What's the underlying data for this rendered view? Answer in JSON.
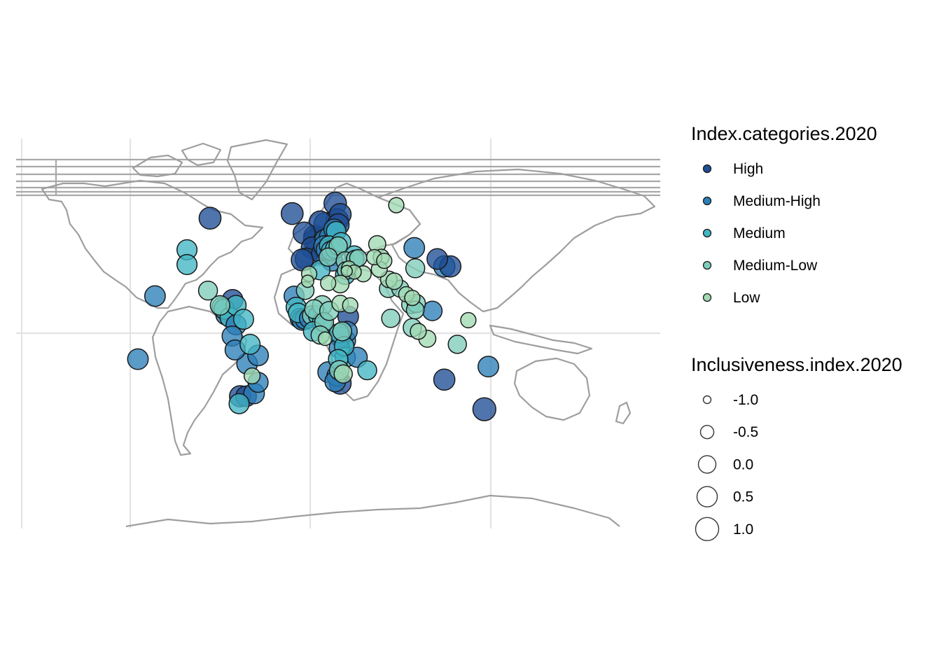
{
  "chart_data": {
    "type": "bubble-map",
    "title": "",
    "legends": {
      "color": {
        "title": "Index.categories.2020",
        "items": [
          {
            "label": "High",
            "color": "#1f4e96"
          },
          {
            "label": "Medium-High",
            "color": "#2c7fb8"
          },
          {
            "label": "Medium",
            "color": "#41b6c4"
          },
          {
            "label": "Medium-Low",
            "color": "#7fcdbb"
          },
          {
            "label": "Low",
            "color": "#a1dab4"
          }
        ]
      },
      "size": {
        "title": "Inclusiveness.index.2020",
        "items": [
          {
            "label": "-1.0",
            "value": -1.0
          },
          {
            "label": "-0.5",
            "value": -0.5
          },
          {
            "label": "0.0",
            "value": 0.0
          },
          {
            "label": "0.5",
            "value": 0.5
          },
          {
            "label": "1.0",
            "value": 1.0
          }
        ]
      }
    },
    "points": [
      {
        "lon": 25.0,
        "lat": 70.0,
        "cat": "High",
        "index": 0.9
      },
      {
        "lon": -100.0,
        "lat": 62.0,
        "cat": "High",
        "index": 0.8
      },
      {
        "lon": 86.0,
        "lat": 69.0,
        "cat": "Low",
        "index": -0.3
      },
      {
        "lon": 30.0,
        "lat": 64.0,
        "cat": "High",
        "index": 0.8
      },
      {
        "lon": 27.0,
        "lat": 61.0,
        "cat": "High",
        "index": 0.9
      },
      {
        "lon": 10.0,
        "lat": 60.0,
        "cat": "High",
        "index": 0.8
      },
      {
        "lon": 15.0,
        "lat": 59.0,
        "cat": "High",
        "index": 0.9
      },
      {
        "lon": 28.0,
        "lat": 58.5,
        "cat": "High",
        "index": 0.8
      },
      {
        "lon": -18.0,
        "lat": 64.5,
        "cat": "High",
        "index": 0.8
      },
      {
        "lon": -6.0,
        "lat": 54.0,
        "cat": "High",
        "index": 0.8
      },
      {
        "lon": 5.0,
        "lat": 52.0,
        "cat": "High",
        "index": 1.0
      },
      {
        "lon": 9.0,
        "lat": 51.0,
        "cat": "High",
        "index": 1.0
      },
      {
        "lon": 4.5,
        "lat": 50.0,
        "cat": "High",
        "index": 0.9
      },
      {
        "lon": 15.0,
        "lat": 50.5,
        "cat": "Medium-High",
        "index": 0.6
      },
      {
        "lon": 19.5,
        "lat": 52.0,
        "cat": "Medium-High",
        "index": 0.6
      },
      {
        "lon": 24.0,
        "lat": 56.0,
        "cat": "Medium-High",
        "index": 0.6
      },
      {
        "lon": 26.0,
        "lat": 55.0,
        "cat": "Medium",
        "index": 0.4
      },
      {
        "lon": 2.0,
        "lat": 46.0,
        "cat": "High",
        "index": 0.8
      },
      {
        "lon": 8.0,
        "lat": 46.8,
        "cat": "High",
        "index": 0.9
      },
      {
        "lon": 14.0,
        "lat": 47.0,
        "cat": "Medium-High",
        "index": 0.6
      },
      {
        "lon": 12.0,
        "lat": 43.0,
        "cat": "High",
        "index": 0.7
      },
      {
        "lon": 19.0,
        "lat": 47.2,
        "cat": "Medium",
        "index": 0.4
      },
      {
        "lon": 21.0,
        "lat": 44.5,
        "cat": "Medium",
        "index": 0.4
      },
      {
        "lon": 25.0,
        "lat": 45.5,
        "cat": "Medium",
        "index": 0.4
      },
      {
        "lon": 28.0,
        "lat": 47.0,
        "cat": "Medium-Low",
        "index": 0.2
      },
      {
        "lon": 31.0,
        "lat": 49.0,
        "cat": "Medium",
        "index": 0.4
      },
      {
        "lon": 22.0,
        "lat": 39.0,
        "cat": "Medium-High",
        "index": 0.6
      },
      {
        "lon": 18.0,
        "lat": 41.0,
        "cat": "Medium-Low",
        "index": 0.2
      },
      {
        "lon": 16.0,
        "lat": 45.0,
        "cat": "Medium-High",
        "index": 0.5
      },
      {
        "lon": -4.0,
        "lat": 40.0,
        "cat": "High",
        "index": 0.8
      },
      {
        "lon": -8.0,
        "lat": 39.5,
        "cat": "High",
        "index": 0.8
      },
      {
        "lon": 35.0,
        "lat": 39.0,
        "cat": "Medium-Low",
        "index": 0.2
      },
      {
        "lon": 44.0,
        "lat": 42.0,
        "cat": "Medium",
        "index": 0.3
      },
      {
        "lon": 45.0,
        "lat": 40.0,
        "cat": "Medium-Low",
        "index": 0.1
      },
      {
        "lon": 48.0,
        "lat": 40.5,
        "cat": "Medium-Low",
        "index": 0.0
      },
      {
        "lon": 38.5,
        "lat": 35.0,
        "cat": "Low",
        "index": -0.4
      },
      {
        "lon": 36.0,
        "lat": 33.8,
        "cat": "Medium-Low",
        "index": 0.1
      },
      {
        "lon": 35.0,
        "lat": 31.5,
        "cat": "Medium",
        "index": 0.4
      },
      {
        "lon": 53.0,
        "lat": 32.0,
        "cat": "Low",
        "index": -0.2
      },
      {
        "lon": 44.0,
        "lat": 33.0,
        "cat": "Low",
        "index": -0.5
      },
      {
        "lon": 36.5,
        "lat": 33.5,
        "cat": "Low",
        "index": -1.0
      },
      {
        "lon": 67.0,
        "lat": 48.0,
        "cat": "Low",
        "index": 0.0
      },
      {
        "lon": 104.0,
        "lat": 46.0,
        "cat": "Medium-High",
        "index": 0.6
      },
      {
        "lon": 127.0,
        "lat": 40.0,
        "cat": "High",
        "index": 0.6
      },
      {
        "lon": 64.0,
        "lat": 41.0,
        "cat": "Low",
        "index": -0.3
      },
      {
        "lon": 71.0,
        "lat": 41.0,
        "cat": "Low",
        "index": -0.2
      },
      {
        "lon": 74.0,
        "lat": 39.0,
        "cat": "Low",
        "index": -0.3
      },
      {
        "lon": 69.0,
        "lat": 34.5,
        "cat": "Low",
        "index": -0.2
      },
      {
        "lon": 105.0,
        "lat": 35.0,
        "cat": "Medium-Low",
        "index": 0.3
      },
      {
        "lon": 134.0,
        "lat": 36.0,
        "cat": "Medium-High",
        "index": 0.7
      },
      {
        "lon": 140.0,
        "lat": 36.0,
        "cat": "High",
        "index": 0.7
      },
      {
        "lon": 78.5,
        "lat": 29.0,
        "cat": "Low",
        "index": -0.1
      },
      {
        "lon": 84.0,
        "lat": 28.0,
        "cat": "Low",
        "index": -0.1
      },
      {
        "lon": 78.0,
        "lat": 24.0,
        "cat": "Medium-Low",
        "index": 0.1
      },
      {
        "lon": 90.0,
        "lat": 24.0,
        "cat": "Medium-Low",
        "index": 0.0
      },
      {
        "lon": 96.0,
        "lat": 21.0,
        "cat": "Low",
        "index": -0.3
      },
      {
        "lon": 102.0,
        "lat": 19.0,
        "cat": "Low",
        "index": -0.3
      },
      {
        "lon": 100.5,
        "lat": 15.5,
        "cat": "Medium-Low",
        "index": 0.2
      },
      {
        "lon": 106.0,
        "lat": 16.0,
        "cat": "Medium-Low",
        "index": 0.2
      },
      {
        "lon": 105.0,
        "lat": 12.5,
        "cat": "Medium-Low",
        "index": 0.1
      },
      {
        "lon": 122.0,
        "lat": 12.0,
        "cat": "Medium-High",
        "index": 0.4
      },
      {
        "lon": 80.5,
        "lat": 8.0,
        "cat": "Medium-Low",
        "index": 0.2
      },
      {
        "lon": 102.0,
        "lat": 3.0,
        "cat": "Medium-Low",
        "index": 0.2
      },
      {
        "lon": 108.0,
        "lat": 1.0,
        "cat": "Low",
        "index": -0.2
      },
      {
        "lon": 117.0,
        "lat": -3.0,
        "cat": "Low",
        "index": 0.0
      },
      {
        "lon": 147.0,
        "lat": -6.0,
        "cat": "Medium-Low",
        "index": 0.2
      },
      {
        "lon": 158.0,
        "lat": 7.0,
        "cat": "Low",
        "index": -0.3
      },
      {
        "lon": 134.0,
        "lat": -25.0,
        "cat": "High",
        "index": 0.7
      },
      {
        "lon": 174.0,
        "lat": -41.0,
        "cat": "High",
        "index": 1.0
      },
      {
        "lon": 178.0,
        "lat": -18.0,
        "cat": "Medium-High",
        "index": 0.6
      },
      {
        "lon": -155.0,
        "lat": 20.0,
        "cat": "Medium-High",
        "index": 0.6
      },
      {
        "lon": -172.0,
        "lat": -14.0,
        "cat": "Medium-High",
        "index": 0.6
      },
      {
        "lon": -123.0,
        "lat": 45.0,
        "cat": "Medium",
        "index": 0.5
      },
      {
        "lon": -123.0,
        "lat": 37.0,
        "cat": "Medium",
        "index": 0.5
      },
      {
        "lon": -102.0,
        "lat": 23.0,
        "cat": "Medium-Low",
        "index": 0.3
      },
      {
        "lon": -77.5,
        "lat": 18.0,
        "cat": "High",
        "index": 0.6
      },
      {
        "lon": -90.0,
        "lat": 15.0,
        "cat": "Medium-Low",
        "index": 0.4
      },
      {
        "lon": -88.0,
        "lat": 14.0,
        "cat": "Medium",
        "index": 0.5
      },
      {
        "lon": -86.0,
        "lat": 13.0,
        "cat": "Medium",
        "index": 0.5
      },
      {
        "lon": -84.0,
        "lat": 10.0,
        "cat": "Medium-High",
        "index": 0.6
      },
      {
        "lon": -80.0,
        "lat": 8.5,
        "cat": "Medium",
        "index": 0.5
      },
      {
        "lon": -74.0,
        "lat": 15.0,
        "cat": "Medium",
        "index": 0.5
      },
      {
        "lon": -74.0,
        "lat": 4.5,
        "cat": "Medium-High",
        "index": 0.5
      },
      {
        "lon": -66.5,
        "lat": 7.5,
        "cat": "Medium",
        "index": 0.5
      },
      {
        "lon": -78.0,
        "lat": -1.5,
        "cat": "Medium-High",
        "index": 0.5
      },
      {
        "lon": -75.0,
        "lat": -9.0,
        "cat": "Medium-High",
        "index": 0.5
      },
      {
        "lon": -63.0,
        "lat": -16.5,
        "cat": "Medium-High",
        "index": 0.6
      },
      {
        "lon": -58.0,
        "lat": -23.0,
        "cat": "Low",
        "index": -0.2
      },
      {
        "lon": -52.0,
        "lat": -12.0,
        "cat": "Medium-High",
        "index": 0.6
      },
      {
        "lon": -52.0,
        "lat": -26.5,
        "cat": "Medium-High",
        "index": 0.5
      },
      {
        "lon": -64.0,
        "lat": -34.0,
        "cat": "High",
        "index": 0.6
      },
      {
        "lon": -70.0,
        "lat": -34.0,
        "cat": "High",
        "index": 0.7
      },
      {
        "lon": -71.0,
        "lat": -38.0,
        "cat": "Medium",
        "index": 0.5
      },
      {
        "lon": -60.0,
        "lat": -6.0,
        "cat": "Medium",
        "index": 0.5
      },
      {
        "lon": -56.0,
        "lat": -32.5,
        "cat": "Medium-High",
        "index": 0.6
      },
      {
        "lon": -16.0,
        "lat": 20.0,
        "cat": "Medium-High",
        "index": 0.5
      },
      {
        "lon": -14.0,
        "lat": 14.0,
        "cat": "Medium",
        "index": 0.5
      },
      {
        "lon": -12.0,
        "lat": 11.0,
        "cat": "Medium",
        "index": 0.4
      },
      {
        "lon": -10.0,
        "lat": 8.0,
        "cat": "Medium-High",
        "index": 0.5
      },
      {
        "lon": -8.0,
        "lat": 7.0,
        "cat": "Medium-High",
        "index": 0.5
      },
      {
        "lon": -5.0,
        "lat": 7.5,
        "cat": "Medium-High",
        "index": 0.5
      },
      {
        "lon": -1.0,
        "lat": 8.0,
        "cat": "Medium-High",
        "index": 0.4
      },
      {
        "lon": 2.0,
        "lat": 9.5,
        "cat": "Medium-Low",
        "index": 0.4
      },
      {
        "lon": 8.0,
        "lat": 9.5,
        "cat": "Medium",
        "index": 0.4
      },
      {
        "lon": 4.0,
        "lat": 13.0,
        "cat": "Medium-Low",
        "index": 0.3
      },
      {
        "lon": 12.0,
        "lat": 6.0,
        "cat": "Medium",
        "index": 0.4
      },
      {
        "lon": 14.0,
        "lat": 6.0,
        "cat": "Medium-Low",
        "index": 0.3
      },
      {
        "lon": 12.0,
        "lat": 15.0,
        "cat": "Medium-Low",
        "index": 0.4
      },
      {
        "lon": 19.0,
        "lat": 12.0,
        "cat": "Medium-Low",
        "index": 0.3
      },
      {
        "lon": 30.0,
        "lat": 16.0,
        "cat": "Low",
        "index": -0.1
      },
      {
        "lon": 38.0,
        "lat": 9.0,
        "cat": "High",
        "index": 0.6
      },
      {
        "lon": 40.0,
        "lat": 15.0,
        "cat": "Low",
        "index": -0.3
      },
      {
        "lon": -1.0,
        "lat": 32.0,
        "cat": "Low",
        "index": -0.3
      },
      {
        "lon": -2.5,
        "lat": 28.0,
        "cat": "Low",
        "index": -0.8
      },
      {
        "lon": 18.0,
        "lat": 27.0,
        "cat": "Low",
        "index": -0.3
      },
      {
        "lon": 30.0,
        "lat": 26.5,
        "cat": "Low",
        "index": 0.1
      },
      {
        "lon": -5.0,
        "lat": 23.0,
        "cat": "Medium-Low",
        "index": 0.1
      },
      {
        "lon": 10.0,
        "lat": 34.0,
        "cat": "Medium",
        "index": 0.4
      },
      {
        "lon": 3.0,
        "lat": 1.0,
        "cat": "Medium",
        "index": 0.4
      },
      {
        "lon": 10.0,
        "lat": -1.0,
        "cat": "Medium-Low",
        "index": 0.2
      },
      {
        "lon": 15.0,
        "lat": -3.0,
        "cat": "Low",
        "index": -0.6
      },
      {
        "lon": 29.0,
        "lat": 0.0,
        "cat": "Medium",
        "index": 0.4
      },
      {
        "lon": 32.0,
        "lat": 1.0,
        "cat": "Medium-Low",
        "index": 0.3
      },
      {
        "lon": 37.0,
        "lat": 1.0,
        "cat": "Medium-High",
        "index": 0.5
      },
      {
        "lon": 30.0,
        "lat": -2.0,
        "cat": "Medium-High",
        "index": 0.5
      },
      {
        "lon": 35.0,
        "lat": -4.0,
        "cat": "Medium-High",
        "index": 0.6
      },
      {
        "lon": 34.0,
        "lat": -7.0,
        "cat": "Medium",
        "index": 0.4
      },
      {
        "lon": 29.0,
        "lat": -8.0,
        "cat": "Medium-High",
        "index": 0.5
      },
      {
        "lon": 35.0,
        "lat": -13.0,
        "cat": "Medium",
        "index": 0.5
      },
      {
        "lon": 28.0,
        "lat": -14.0,
        "cat": "Medium",
        "index": 0.4
      },
      {
        "lon": 47.0,
        "lat": -13.0,
        "cat": "Medium-High",
        "index": 0.5
      },
      {
        "lon": 57.0,
        "lat": -20.0,
        "cat": "Medium",
        "index": 0.3
      },
      {
        "lon": 18.0,
        "lat": -21.0,
        "cat": "Medium-High",
        "index": 0.6
      },
      {
        "lon": 29.0,
        "lat": -20.0,
        "cat": "Medium-Low",
        "index": 0.4
      },
      {
        "lon": 27.0,
        "lat": -23.0,
        "cat": "Medium-High",
        "index": 0.6
      },
      {
        "lon": 25.0,
        "lat": -26.0,
        "cat": "Medium-High",
        "index": 0.6
      },
      {
        "lon": 30.0,
        "lat": -27.0,
        "cat": "High",
        "index": 0.8
      },
      {
        "lon": 33.0,
        "lat": -22.0,
        "cat": "Low",
        "index": 0.2
      }
    ]
  }
}
